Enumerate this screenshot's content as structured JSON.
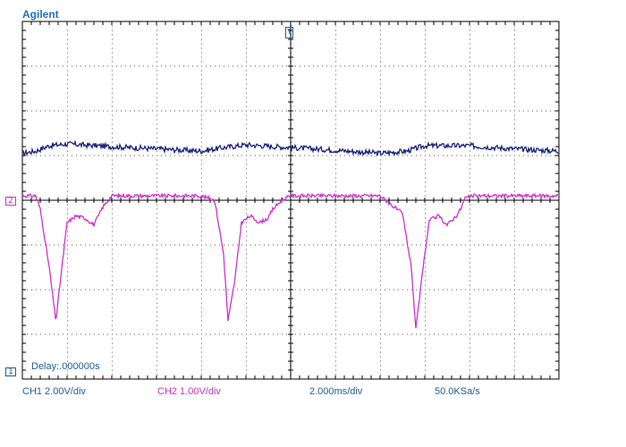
{
  "brand": "Agilent",
  "delay_label": "Delay:.000000s",
  "status": {
    "ch1": "CH1 2.00V/div",
    "ch2": "CH2 1.00V/div",
    "timebase": "2.000ms/div",
    "sample_rate": "50.0KSa/s"
  },
  "markers": {
    "ch1": "1",
    "ch2": "2",
    "trigger": "T"
  },
  "colors": {
    "ch1": "#1a237e",
    "ch2": "#cc33cc",
    "grid": "#000000",
    "text": "#1e5f9a"
  },
  "chart_data": {
    "type": "line",
    "grid": {
      "x_divisions": 12,
      "y_divisions": 8
    },
    "series": [
      {
        "name": "CH1",
        "description_units": "divisions",
        "x": [
          0,
          0.3,
          0.6,
          1.0,
          2.0,
          3.0,
          4.0,
          4.5,
          5.0,
          6.0,
          7.0,
          8.0,
          8.6,
          9.0,
          10.0,
          11.0,
          12.0
        ],
        "y": [
          1.05,
          1.1,
          1.22,
          1.26,
          1.2,
          1.15,
          1.1,
          1.18,
          1.24,
          1.18,
          1.12,
          1.05,
          1.1,
          1.22,
          1.22,
          1.15,
          1.1
        ]
      },
      {
        "name": "CH2",
        "description_units": "divisions",
        "x": [
          0,
          0.3,
          0.4,
          0.6,
          0.75,
          0.85,
          1.0,
          1.2,
          1.4,
          1.6,
          1.7,
          1.8,
          2.0,
          4.0,
          4.3,
          4.5,
          4.6,
          4.75,
          4.9,
          5.1,
          5.3,
          5.5,
          5.6,
          5.8,
          6.0,
          8.0,
          8.5,
          8.7,
          8.8,
          8.95,
          9.1,
          9.3,
          9.5,
          9.7,
          9.8,
          9.9,
          10.1,
          12.0
        ],
        "y": [
          0.1,
          0.1,
          -0.2,
          -1.5,
          -2.7,
          -1.8,
          -0.5,
          -0.35,
          -0.4,
          -0.55,
          -0.35,
          -0.15,
          0.1,
          0.1,
          0.0,
          -1.2,
          -2.7,
          -1.8,
          -0.5,
          -0.35,
          -0.5,
          -0.4,
          -0.2,
          0.0,
          0.1,
          0.1,
          -0.3,
          -1.5,
          -2.9,
          -1.6,
          -0.45,
          -0.35,
          -0.55,
          -0.35,
          -0.2,
          0.05,
          0.1,
          0.1
        ]
      }
    ]
  }
}
